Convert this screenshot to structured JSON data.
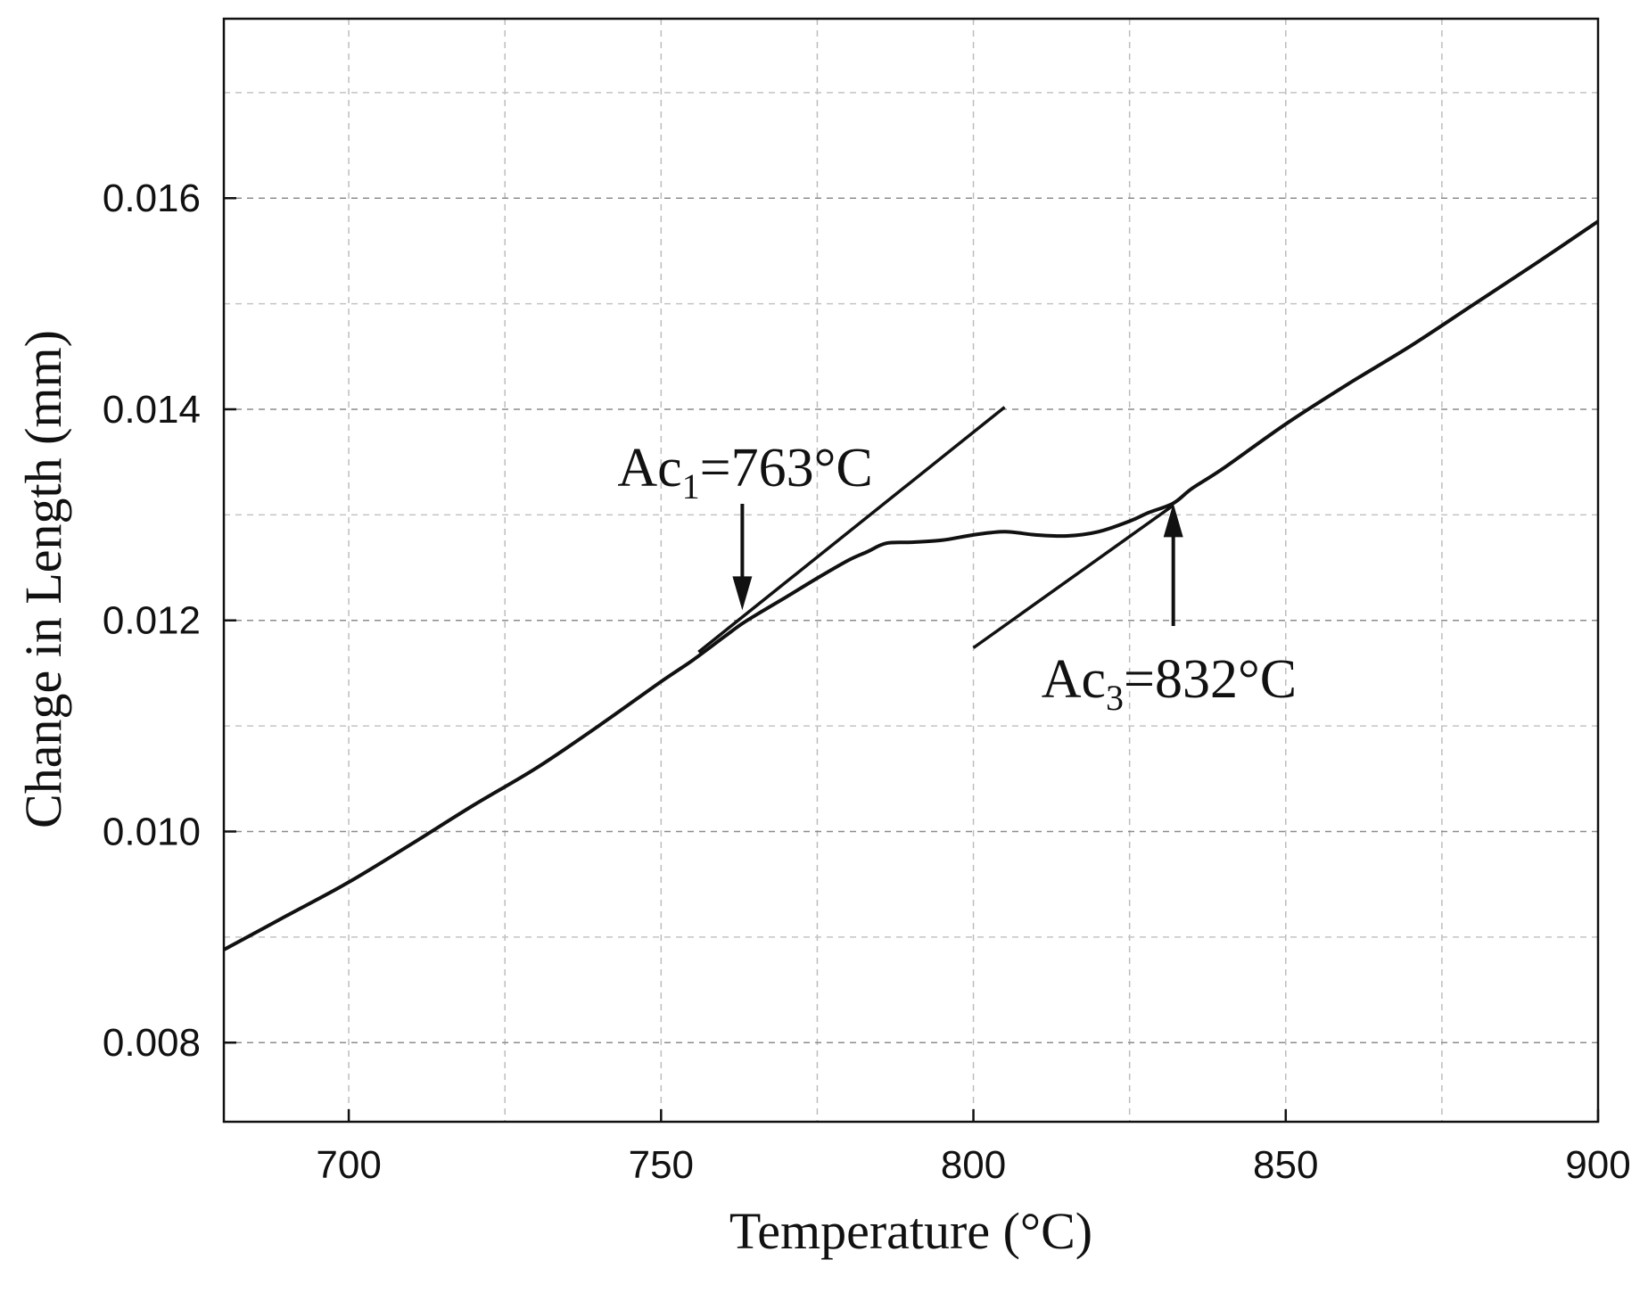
{
  "chart_data": {
    "type": "line",
    "xlabel": "Temperature (°C)",
    "ylabel": "Change in Length (mm)",
    "xlim": [
      680,
      900
    ],
    "ylim": [
      0.00725,
      0.0177
    ],
    "x_ticks": [
      700,
      750,
      800,
      850,
      900
    ],
    "x_tick_labels": [
      "700",
      "750",
      "800",
      "850",
      "900"
    ],
    "y_ticks": [
      0.008,
      0.01,
      0.012,
      0.014,
      0.016
    ],
    "y_tick_labels": [
      "0.008",
      "0.010",
      "0.012",
      "0.014",
      "0.016"
    ],
    "grid": true,
    "legend": "none",
    "series": [
      {
        "x": [
          680,
          690,
          700,
          710,
          720,
          730,
          740,
          750,
          755,
          760,
          763,
          766,
          770,
          775,
          780,
          783,
          786,
          790,
          795,
          800,
          805,
          810,
          815,
          820,
          825,
          828,
          832,
          835,
          840,
          850,
          860,
          870,
          880,
          890,
          900
        ],
        "y": [
          0.00888,
          0.0092,
          0.00952,
          0.00988,
          0.01025,
          0.0106,
          0.011,
          0.01142,
          0.01162,
          0.01184,
          0.01197,
          0.01208,
          0.01222,
          0.0124,
          0.01257,
          0.01265,
          0.01273,
          0.01274,
          0.01276,
          0.01281,
          0.01284,
          0.01281,
          0.0128,
          0.01284,
          0.01294,
          0.01302,
          0.01311,
          0.01325,
          0.01344,
          0.01386,
          0.01424,
          0.0146,
          0.01499,
          0.01538,
          0.01578
        ]
      }
    ],
    "tangent_lines": [
      {
        "x": [
          756,
          805
        ],
        "y": [
          0.0117,
          0.01402
        ]
      },
      {
        "x": [
          800,
          832
        ],
        "y": [
          0.01174,
          0.01309
        ]
      }
    ],
    "annotations": [
      {
        "main": "Ac",
        "sub": "1",
        "rest": "=763°C",
        "x": 763,
        "y": 0.01213
      },
      {
        "main": "Ac",
        "sub": "3",
        "rest": "=832°C",
        "x": 832,
        "y": 0.01311
      }
    ]
  }
}
